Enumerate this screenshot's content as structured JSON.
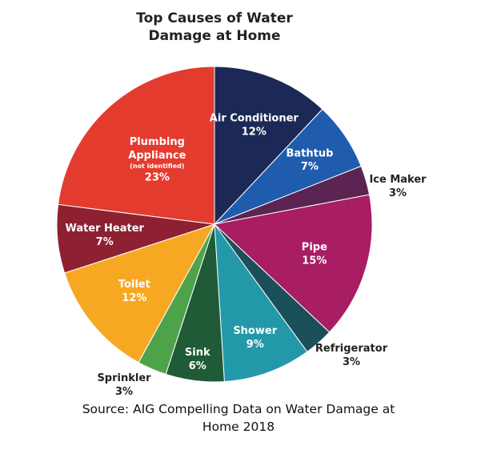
{
  "title_lines": [
    "Top Causes of Water",
    "Damage at Home"
  ],
  "source_lines": [
    "Source: AIG Compelling Data on Water Damage at",
    "Home 2018"
  ],
  "chart_data": {
    "type": "pie",
    "title": "Top Causes of Water Damage at Home",
    "unit": "%",
    "slices": [
      {
        "label": "Air Conditioner",
        "value": 12,
        "value_label": "12%",
        "color": "#1c2957"
      },
      {
        "label": "Bathtub",
        "value": 7,
        "value_label": "7%",
        "color": "#1f5cae"
      },
      {
        "label": "Ice Maker",
        "value": 3,
        "value_label": "3%",
        "color": "#5b2453"
      },
      {
        "label": "Pipe",
        "value": 15,
        "value_label": "15%",
        "color": "#a81d63"
      },
      {
        "label": "Refrigerator",
        "value": 3,
        "value_label": "3%",
        "color": "#1b4f5a"
      },
      {
        "label": "Shower",
        "value": 9,
        "value_label": "9%",
        "color": "#2398a8"
      },
      {
        "label": "Sink",
        "value": 6,
        "value_label": "6%",
        "color": "#1f5b37"
      },
      {
        "label": "Sprinkler",
        "value": 3,
        "value_label": "3%",
        "color": "#4ea34a"
      },
      {
        "label": "Toilet",
        "value": 12,
        "value_label": "12%",
        "color": "#f7a823"
      },
      {
        "label": "Water Heater",
        "value": 7,
        "value_label": "7%",
        "color": "#8d2131"
      },
      {
        "label": "Plumbing Appliance",
        "sublabel": "(not identified)",
        "value": 23,
        "value_label": "23%",
        "color": "#e43b2f"
      }
    ]
  }
}
